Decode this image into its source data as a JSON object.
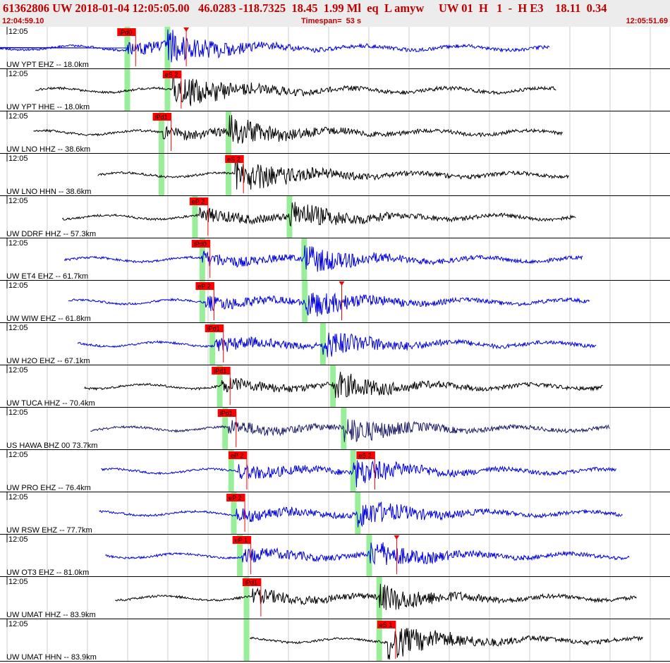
{
  "header": {
    "title": "61362806 UW 2018-01-04 12:05:05.00   46.0283 -118.7325  18.45  1.99 Ml  eq  L amyw     UW 01  H   1  -  H E3    18.11  0.34",
    "start_time": "12:04:59.10",
    "timespan": "Timespan=  53 s",
    "end_time": "12:05:51.69"
  },
  "colors": {
    "vertical_trace": "#0000dd",
    "horizontal_trace": "#000000",
    "pick_flag": "#ff0000",
    "theoretical_window": "#99ee99",
    "header_text": "#c00000"
  },
  "traces": [
    {
      "label": "UW YPT EHZ -- 18.0km",
      "time_label": "12:05",
      "color": "blue",
      "picks": [
        {
          "label": "iPd0",
          "pos": 0.175
        },
        {
          "label": "",
          "pos": 0.278,
          "arrow": true
        }
      ],
      "green": [
        0.19,
        0.25
      ]
    },
    {
      "label": "UW YPT HHE -- 18.0km",
      "time_label": "12:05",
      "color": "black",
      "picks": [
        {
          "label": "eS 2",
          "pos": 0.243
        }
      ],
      "green": [
        0.19,
        0.25
      ]
    },
    {
      "label": "UW LNO HHZ -- 38.6km",
      "time_label": "12:05",
      "color": "black",
      "picks": [
        {
          "label": "iPd1",
          "pos": 0.228
        }
      ],
      "green": [
        0.241,
        0.341
      ]
    },
    {
      "label": "UW LNO HHN -- 38.6km",
      "time_label": "12:05",
      "color": "black",
      "picks": [
        {
          "label": "eS 2",
          "pos": 0.336
        }
      ],
      "green": [
        0.241,
        0.341
      ]
    },
    {
      "label": "UW DDRF HHZ -- 57.3km",
      "time_label": "12:05",
      "color": "black",
      "picks": [
        {
          "label": "eP 2",
          "pos": 0.283
        }
      ],
      "green": [
        0.291,
        0.432
      ]
    },
    {
      "label": "UW ET4 EHZ -- 61.7km",
      "time_label": "12:05",
      "color": "blue",
      "picks": [
        {
          "label": "iPd0",
          "pos": 0.286
        }
      ],
      "green": [
        0.302,
        0.454
      ]
    },
    {
      "label": "UW WIW EHZ -- 61.8km",
      "time_label": "12:05",
      "color": "blue",
      "picks": [
        {
          "label": "eP 2",
          "pos": 0.292
        },
        {
          "label": "",
          "pos": 0.51,
          "arrow": true
        }
      ],
      "green": [
        0.302,
        0.455
      ]
    },
    {
      "label": "UW H2O EHZ -- 67.1km",
      "time_label": "12:05",
      "color": "blue",
      "picks": [
        {
          "label": "iPd1",
          "pos": 0.306
        }
      ],
      "green": [
        0.317,
        0.482
      ]
    },
    {
      "label": "UW TUCA HHZ -- 70.4km",
      "time_label": "12:05",
      "color": "black",
      "picks": [
        {
          "label": "iPd1",
          "pos": 0.316
        }
      ],
      "green": [
        0.328,
        0.497
      ]
    },
    {
      "label": "US HAWA BHZ 00 73.7km",
      "time_label": "12:05",
      "color": "darkblue",
      "picks": [
        {
          "label": "iPd1",
          "pos": 0.325
        }
      ],
      "green": [
        0.336,
        0.513
      ]
    },
    {
      "label": "UW PRO EHZ -- 76.4km",
      "time_label": "12:05",
      "color": "blue",
      "picks": [
        {
          "label": "eP 2",
          "pos": 0.341
        },
        {
          "label": "eS 2",
          "pos": 0.532
        }
      ],
      "green": [
        0.345,
        0.527
      ]
    },
    {
      "label": "UW RSW EHZ -- 77.7km",
      "time_label": "12:05",
      "color": "blue",
      "picks": [
        {
          "label": "eP 2",
          "pos": 0.338
        }
      ],
      "green": [
        0.349,
        0.534
      ]
    },
    {
      "label": "UW OT3 EHZ -- 81.0km",
      "time_label": "12:05",
      "color": "blue",
      "picks": [
        {
          "label": "eP 1",
          "pos": 0.347
        },
        {
          "label": "",
          "pos": 0.592,
          "arrow": true
        }
      ],
      "green": [
        0.358,
        0.551
      ]
    },
    {
      "label": "UW UMAT HHZ -- 83.9km",
      "time_label": "12:05",
      "color": "black",
      "picks": [
        {
          "label": "iPd1",
          "pos": 0.362
        }
      ],
      "green": [
        0.368,
        0.566
      ]
    },
    {
      "label": "UW UMAT HHN -- 83.9km",
      "time_label": "12:05",
      "color": "black",
      "picks": [
        {
          "label": "eS 1",
          "pos": 0.563
        }
      ],
      "green": [
        0.368,
        0.566
      ]
    }
  ]
}
